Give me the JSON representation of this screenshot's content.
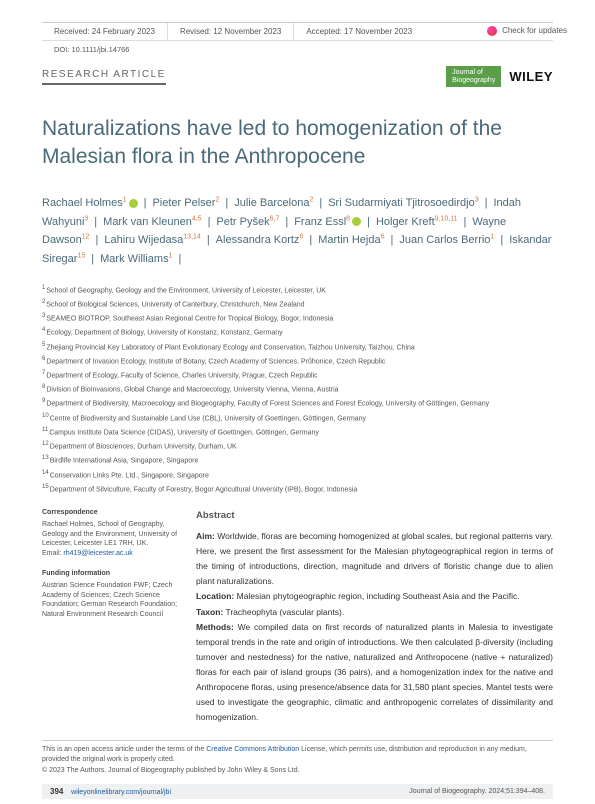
{
  "updates_label": "Check for updates",
  "dates": {
    "received": "Received: 24 February 2023",
    "revised": "Revised: 12 November 2023",
    "accepted": "Accepted: 17 November 2023"
  },
  "doi": "DOI: 10.1111/jbi.14766",
  "article_type": "RESEARCH ARTICLE",
  "journal_box_line1": "Journal of",
  "journal_box_line2": "Biogeography",
  "publisher": "WILEY",
  "title": "Naturalizations have led to homogenization of the Malesian flora in the Anthropocene",
  "authors": [
    {
      "name": "Rachael Holmes",
      "sup": "1",
      "orcid": true
    },
    {
      "name": "Pieter Pelser",
      "sup": "2"
    },
    {
      "name": "Julie Barcelona",
      "sup": "2"
    },
    {
      "name": "Sri Sudarmiyati Tjitrosoedirdjo",
      "sup": "3"
    },
    {
      "name": "Indah Wahyuni",
      "sup": "3"
    },
    {
      "name": "Mark van Kleunen",
      "sup": "4,5"
    },
    {
      "name": "Petr Pyšek",
      "sup": "6,7"
    },
    {
      "name": "Franz Essl",
      "sup": "8",
      "orcid": true
    },
    {
      "name": "Holger Kreft",
      "sup": "9,10,11"
    },
    {
      "name": "Wayne Dawson",
      "sup": "12"
    },
    {
      "name": "Lahiru Wijedasa",
      "sup": "13,14"
    },
    {
      "name": "Alessandra Kortz",
      "sup": "6"
    },
    {
      "name": "Martin Hejda",
      "sup": "6"
    },
    {
      "name": "Juan Carlos Berrio",
      "sup": "1"
    },
    {
      "name": "Iskandar Siregar",
      "sup": "15"
    },
    {
      "name": "Mark Williams",
      "sup": "1"
    }
  ],
  "affiliations": [
    {
      "n": "1",
      "text": "School of Geography, Geology and the Environment, University of Leicester, Leicester, UK"
    },
    {
      "n": "2",
      "text": "School of Biological Sciences, University of Canterbury, Christchurch, New Zealand"
    },
    {
      "n": "3",
      "text": "SEAMEO BIOTROP, Southeast Asian Regional Centre for Tropical Biology, Bogor, Indonesia"
    },
    {
      "n": "4",
      "text": "Ecology, Department of Biology, University of Konstanz, Konstanz, Germany"
    },
    {
      "n": "5",
      "text": "Zhejiang Provincial Key Laboratory of Plant Evolutionary Ecology and Conservation, Taizhou University, Taizhou, China"
    },
    {
      "n": "6",
      "text": "Department of Invasion Ecology, Institute of Botany, Czech Academy of Sciences, Průhonice, Czech Republic"
    },
    {
      "n": "7",
      "text": "Department of Ecology, Faculty of Science, Charles University, Prague, Czech Republic"
    },
    {
      "n": "8",
      "text": "Division of BioInvasions, Global Change and Macroecology, University Vienna, Vienna, Austria"
    },
    {
      "n": "9",
      "text": "Department of Biodiversity, Macroecology and Biogeography, Faculty of Forest Sciences and Forest Ecology, University of Göttingen, Germany"
    },
    {
      "n": "10",
      "text": "Centre of Biodiversity and Sustainable Land Use (CBL), University of Goettingen, Göttingen, Germany"
    },
    {
      "n": "11",
      "text": "Campus Institute Data Science (CIDAS), University of Goettingen, Göttingen, Germany"
    },
    {
      "n": "12",
      "text": "Department of Biosciences, Durham University, Durham, UK"
    },
    {
      "n": "13",
      "text": "Birdlife International Asia, Singapore, Singapore"
    },
    {
      "n": "14",
      "text": "Conservation Links Pte. Ltd., Singapore, Singapore"
    },
    {
      "n": "15",
      "text": "Department of Silviculture, Faculty of Forestry, Bogor Agricultural University (IPB), Bogor, Indonesia"
    }
  ],
  "correspondence": {
    "heading": "Correspondence",
    "body": "Rachael Holmes, School of Geography, Geology and the Environment, University of Leicester, Leicester LE1 7RH, UK.",
    "email_label": "Email:",
    "email": "rh419@leicester.ac.uk"
  },
  "funding": {
    "heading": "Funding information",
    "body": "Austrian Science Foundation FWF; Czech Academy of Sciences; Czech Science Foundation; German Research Foundation; Natural Environment Research Council"
  },
  "abstract": {
    "heading": "Abstract",
    "aim_label": "Aim:",
    "aim": " Worldwide, floras are becoming homogenized at global scales, but regional patterns vary. Here, we present the first assessment for the Malesian phytogeographical region in terms of the timing of introductions, direction, magnitude and drivers of floristic change due to alien plant naturalizations.",
    "location_label": "Location:",
    "location": " Malesian phytogeographic region, including Southeast Asia and the Pacific.",
    "taxon_label": "Taxon:",
    "taxon": " Tracheophyta (vascular plants).",
    "methods_label": "Methods:",
    "methods": " We compiled data on first records of naturalized plants in Malesia to investigate temporal trends in the rate and origin of introductions. We then calculated β-diversity (including turnover and nestedness) for the native, naturalized and Anthropocene (native + naturalized) floras for each pair of island groups (36 pairs), and a homogenization index for the native and Anthropocene floras, using presence/absence data for 31,580 plant species. Mantel tests were used to investigate the geographic, climatic and anthropogenic correlates of dissimilarity and homogenization."
  },
  "license": {
    "line1a": "This is an open access article under the terms of the ",
    "cc_link": "Creative Commons Attribution",
    "line1b": " License, which permits use, distribution and reproduction in any medium, provided the original work is properly cited.",
    "line2": "© 2023 The Authors. Journal of Biogeography published by John Wiley & Sons Ltd."
  },
  "footer": {
    "page": "394",
    "doi_link": "wileyonlinelibrary.com/journal/jbi",
    "citation": "Journal of Biogeography. 2024;51:394–408."
  }
}
